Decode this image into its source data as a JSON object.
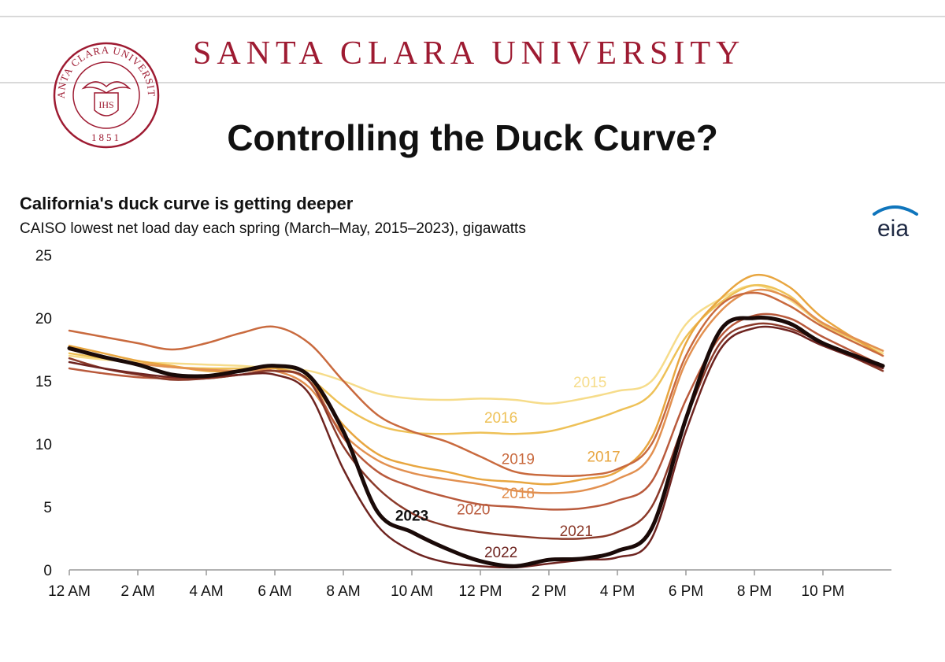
{
  "header": {
    "university": "SANTA CLARA UNIVERSITY",
    "seal_text": "SANTA CLARA UNIVERSITY",
    "seal_year": "1851",
    "seal_monogram": "IHS",
    "title": "Controlling the Duck Curve?"
  },
  "colors": {
    "brand": "#9e1b32",
    "eia_blue": "#0f75bc"
  },
  "source_logo": "eia",
  "chart_data": {
    "type": "line",
    "title": "California's duck curve is getting deeper",
    "subtitle": "CAISO lowest net load day each spring (March–May, 2015–2023), gigawatts",
    "xlabel": "",
    "ylabel": "",
    "x": [
      0,
      1,
      2,
      3,
      4,
      5,
      6,
      7,
      8,
      9,
      10,
      11,
      12,
      13,
      14,
      15,
      16,
      17,
      18,
      19,
      20,
      21,
      22,
      23.75
    ],
    "xlim": [
      0,
      24
    ],
    "ylim": [
      0,
      25
    ],
    "yticks": [
      0,
      5,
      10,
      15,
      20,
      25
    ],
    "xticks": [
      {
        "value": 0,
        "label": "12 AM"
      },
      {
        "value": 2,
        "label": "2 AM"
      },
      {
        "value": 4,
        "label": "4 AM"
      },
      {
        "value": 6,
        "label": "6 AM"
      },
      {
        "value": 8,
        "label": "8 AM"
      },
      {
        "value": 10,
        "label": "10 AM"
      },
      {
        "value": 12,
        "label": "12 PM"
      },
      {
        "value": 14,
        "label": "2 PM"
      },
      {
        "value": 16,
        "label": "4 PM"
      },
      {
        "value": 18,
        "label": "6 PM"
      },
      {
        "value": 20,
        "label": "8 PM"
      },
      {
        "value": 22,
        "label": "10 PM"
      }
    ],
    "grid": false,
    "legend": "none",
    "series": [
      {
        "name": "2015",
        "color": "#f6dc8a",
        "width": 2.5,
        "label_at": [
          15.2,
          14.5
        ],
        "values": [
          17.0,
          16.7,
          16.5,
          16.4,
          16.3,
          16.2,
          16.0,
          15.8,
          15.0,
          14.0,
          13.6,
          13.5,
          13.6,
          13.5,
          13.2,
          13.6,
          14.2,
          15.0,
          19.5,
          21.5,
          22.6,
          21.5,
          19.5,
          17.2
        ]
      },
      {
        "name": "2016",
        "color": "#eec157",
        "width": 2.5,
        "label_at": [
          12.6,
          11.7
        ],
        "values": [
          17.2,
          16.8,
          16.4,
          16.1,
          16.0,
          16.0,
          16.0,
          15.2,
          13.0,
          11.5,
          10.9,
          10.8,
          10.9,
          10.8,
          11.0,
          11.7,
          12.6,
          14.0,
          18.5,
          21.2,
          22.6,
          21.8,
          19.5,
          17.4
        ]
      },
      {
        "name": "2017",
        "color": "#e8a640",
        "width": 2.5,
        "label_at": [
          15.6,
          8.6
        ],
        "values": [
          17.8,
          17.2,
          16.6,
          16.2,
          15.8,
          15.8,
          16.0,
          15.0,
          11.5,
          9.2,
          8.3,
          7.8,
          7.2,
          7.0,
          6.8,
          7.2,
          7.8,
          10.5,
          18.0,
          21.5,
          23.4,
          22.5,
          20.0,
          17.0
        ]
      },
      {
        "name": "2018",
        "color": "#e29050",
        "width": 2.5,
        "label_at": [
          13.1,
          5.7
        ],
        "values": [
          17.5,
          16.9,
          16.4,
          16.1,
          15.9,
          15.8,
          15.8,
          14.5,
          10.8,
          8.7,
          7.7,
          7.2,
          6.8,
          6.3,
          6.1,
          6.3,
          7.2,
          9.2,
          16.5,
          20.5,
          22.2,
          21.6,
          19.6,
          17.4
        ]
      },
      {
        "name": "2019",
        "color": "#c96a3e",
        "width": 2.5,
        "label_at": [
          13.1,
          8.4
        ],
        "values": [
          19.0,
          18.5,
          18.0,
          17.5,
          18.0,
          18.8,
          19.3,
          18.0,
          15.0,
          12.3,
          11.0,
          10.2,
          9.0,
          7.8,
          7.5,
          7.5,
          8.0,
          10.0,
          17.0,
          21.0,
          22.0,
          21.0,
          19.3,
          17.0
        ]
      },
      {
        "name": "2020",
        "color": "#b95a3c",
        "width": 2.5,
        "label_at": [
          11.8,
          4.4
        ],
        "values": [
          16.0,
          15.6,
          15.3,
          15.2,
          15.2,
          15.5,
          15.8,
          15.0,
          10.5,
          7.8,
          6.6,
          5.8,
          5.2,
          5.0,
          4.8,
          4.9,
          5.5,
          7.0,
          13.5,
          18.5,
          20.2,
          20.0,
          18.5,
          16.2
        ]
      },
      {
        "name": "2021",
        "color": "#8b3a2a",
        "width": 2.5,
        "label_at": [
          14.8,
          2.7
        ],
        "values": [
          16.8,
          16.0,
          15.5,
          15.1,
          15.2,
          15.5,
          15.8,
          15.0,
          9.8,
          6.5,
          4.5,
          3.5,
          3.0,
          2.7,
          2.5,
          2.5,
          3.0,
          5.0,
          12.0,
          18.0,
          19.5,
          19.2,
          18.0,
          15.8
        ]
      },
      {
        "name": "2022",
        "color": "#6e2420",
        "width": 2.5,
        "label_at": [
          12.6,
          1.0
        ],
        "values": [
          16.5,
          16.0,
          15.6,
          15.3,
          15.3,
          15.5,
          15.5,
          14.0,
          8.0,
          3.5,
          1.5,
          0.6,
          0.3,
          0.2,
          0.5,
          0.8,
          1.0,
          2.5,
          11.0,
          17.5,
          19.2,
          19.0,
          17.8,
          16.0
        ]
      },
      {
        "name": "2023",
        "color": "#1a0a08",
        "width": 5,
        "bold": true,
        "label_at": [
          10.0,
          3.9
        ],
        "values": [
          17.6,
          16.9,
          16.3,
          15.5,
          15.4,
          15.8,
          16.2,
          15.4,
          11.0,
          4.6,
          3.0,
          1.7,
          0.7,
          0.3,
          0.8,
          0.9,
          1.5,
          3.3,
          12.0,
          19.0,
          20.0,
          19.6,
          18.0,
          16.2
        ]
      }
    ]
  }
}
